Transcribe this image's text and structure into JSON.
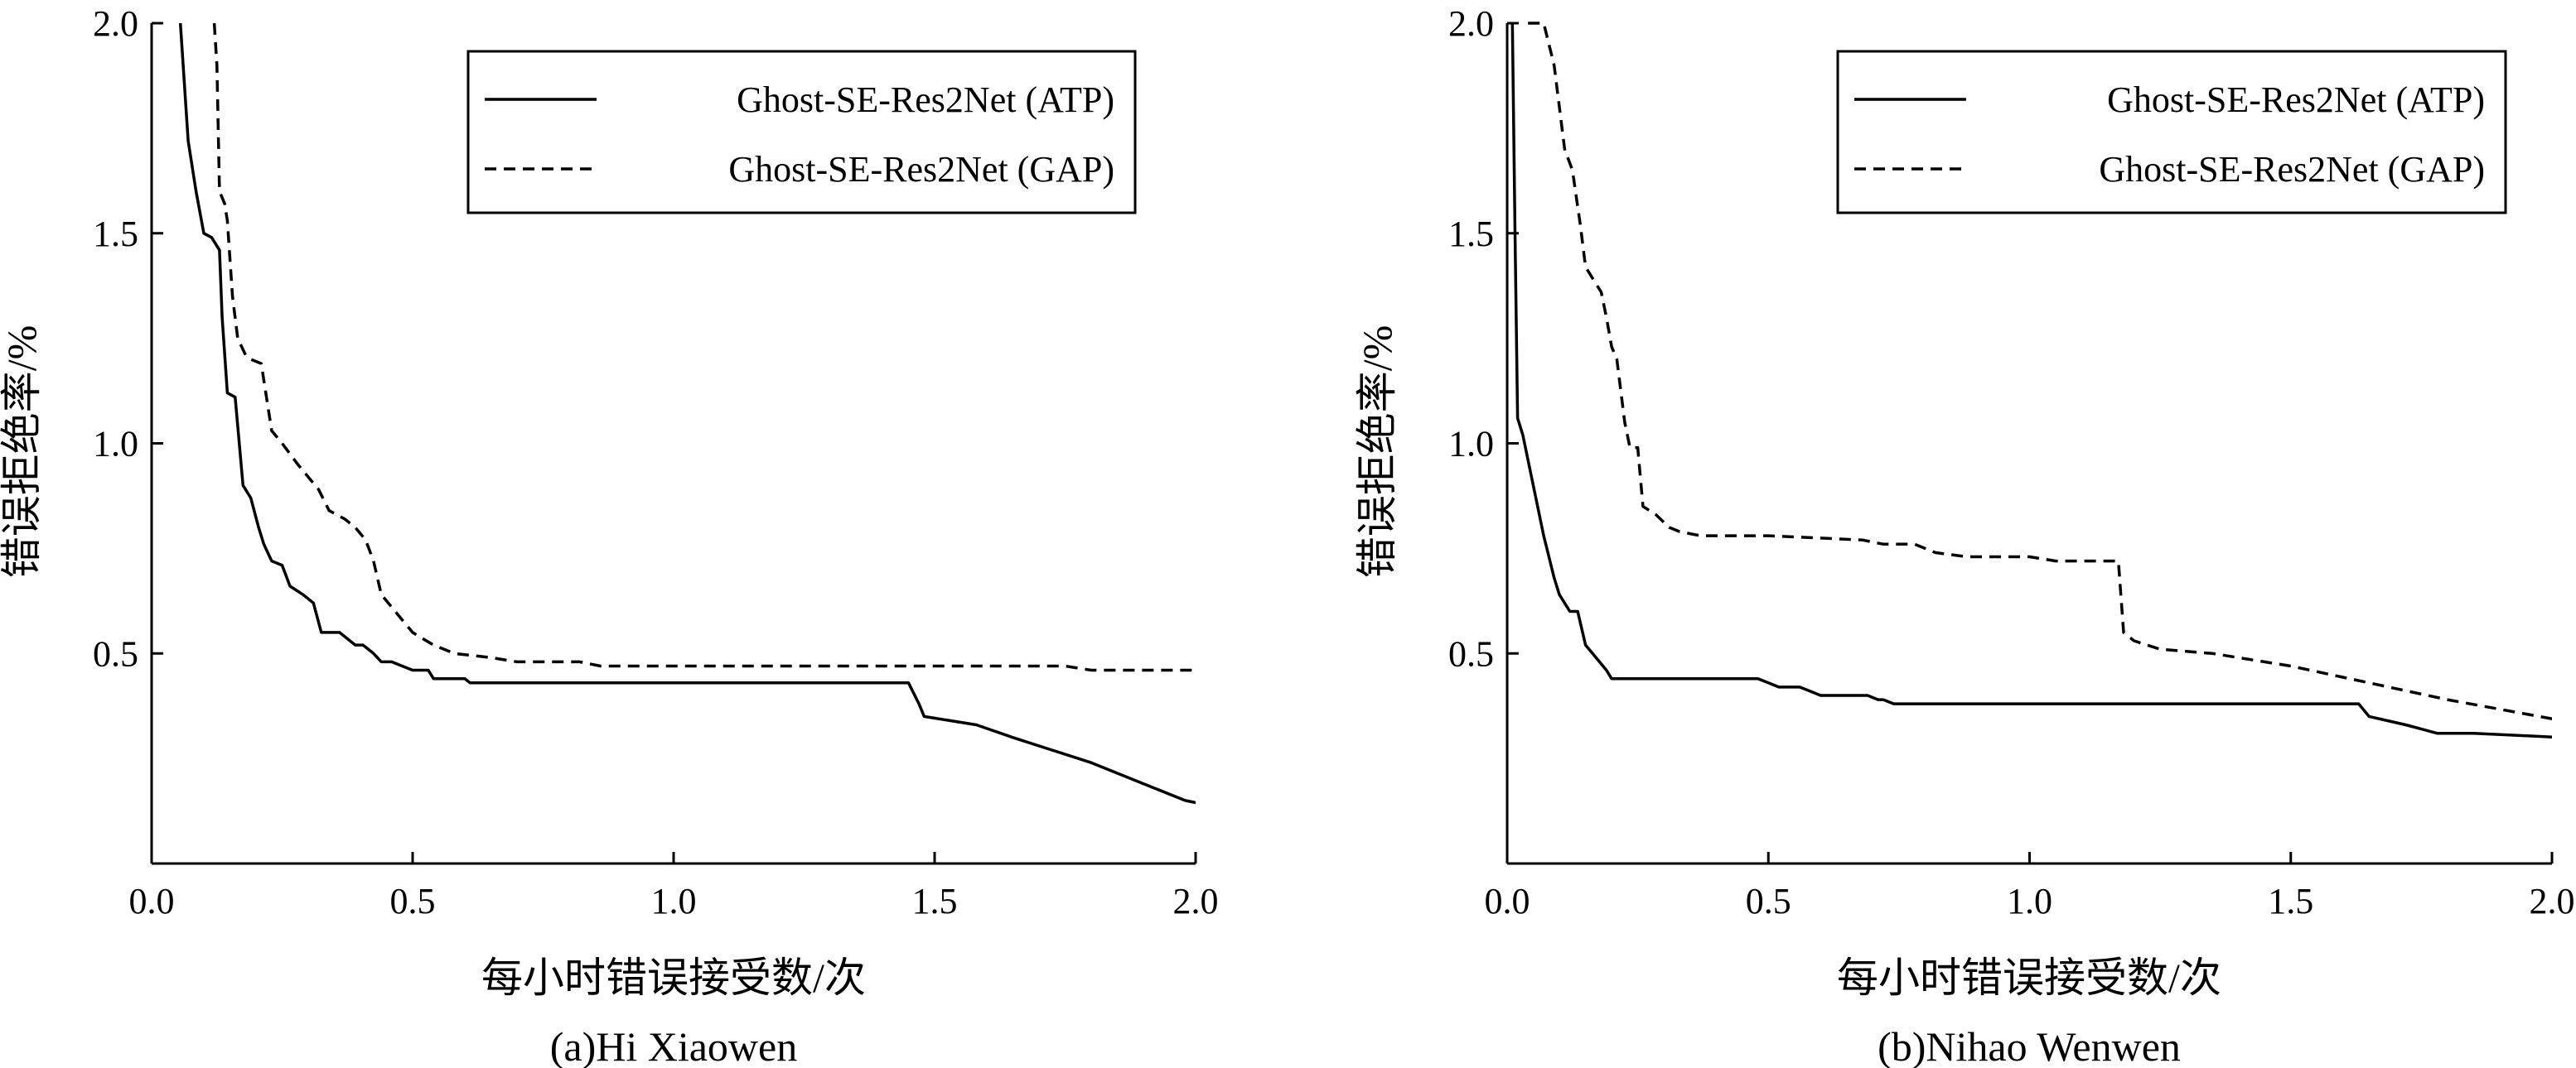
{
  "chart_data": [
    {
      "type": "line",
      "caption": "(a)Hi Xiaowen",
      "xlabel": "每小时错误接受数/次",
      "ylabel": "错误拒绝率/%",
      "xlim": [
        0,
        2.0
      ],
      "ylim": [
        0,
        2.0
      ],
      "xticks": [
        "0.0",
        "0.5",
        "1.0",
        "1.5",
        "2.0"
      ],
      "yticks": [
        "0.5",
        "1.0",
        "1.5",
        "2.0"
      ],
      "legend": "top-right",
      "grid": false,
      "series": [
        {
          "name": "Ghost-SE-Res2Net (ATP)",
          "style": "solid",
          "points": [
            [
              0.055,
              2.0
            ],
            [
              0.07,
              1.72
            ],
            [
              0.085,
              1.6
            ],
            [
              0.1,
              1.5
            ],
            [
              0.115,
              1.49
            ],
            [
              0.13,
              1.46
            ],
            [
              0.135,
              1.3
            ],
            [
              0.145,
              1.12
            ],
            [
              0.16,
              1.11
            ],
            [
              0.175,
              0.9
            ],
            [
              0.19,
              0.87
            ],
            [
              0.205,
              0.8
            ],
            [
              0.215,
              0.76
            ],
            [
              0.23,
              0.72
            ],
            [
              0.25,
              0.71
            ],
            [
              0.265,
              0.66
            ],
            [
              0.29,
              0.64
            ],
            [
              0.31,
              0.62
            ],
            [
              0.325,
              0.55
            ],
            [
              0.36,
              0.55
            ],
            [
              0.38,
              0.53
            ],
            [
              0.39,
              0.52
            ],
            [
              0.405,
              0.52
            ],
            [
              0.425,
              0.5
            ],
            [
              0.44,
              0.48
            ],
            [
              0.46,
              0.48
            ],
            [
              0.48,
              0.47
            ],
            [
              0.5,
              0.46
            ],
            [
              0.53,
              0.46
            ],
            [
              0.54,
              0.44
            ],
            [
              0.6,
              0.44
            ],
            [
              0.61,
              0.43
            ],
            [
              1.45,
              0.43
            ],
            [
              1.47,
              0.38
            ],
            [
              1.48,
              0.35
            ],
            [
              1.58,
              0.33
            ],
            [
              1.65,
              0.3
            ],
            [
              1.8,
              0.24
            ],
            [
              1.98,
              0.15
            ],
            [
              2.02,
              0.14
            ]
          ]
        },
        {
          "name": "Ghost-SE-Res2Net (GAP)",
          "style": "dashed",
          "points": [
            [
              0.12,
              2.0
            ],
            [
              0.125,
              1.9
            ],
            [
              0.13,
              1.6
            ],
            [
              0.14,
              1.57
            ],
            [
              0.145,
              1.53
            ],
            [
              0.155,
              1.35
            ],
            [
              0.165,
              1.25
            ],
            [
              0.18,
              1.21
            ],
            [
              0.19,
              1.2
            ],
            [
              0.21,
              1.19
            ],
            [
              0.23,
              1.03
            ],
            [
              0.25,
              1.0
            ],
            [
              0.28,
              0.95
            ],
            [
              0.3,
              0.92
            ],
            [
              0.32,
              0.89
            ],
            [
              0.34,
              0.84
            ],
            [
              0.37,
              0.82
            ],
            [
              0.39,
              0.8
            ],
            [
              0.41,
              0.77
            ],
            [
              0.425,
              0.72
            ],
            [
              0.44,
              0.64
            ],
            [
              0.46,
              0.61
            ],
            [
              0.48,
              0.58
            ],
            [
              0.5,
              0.55
            ],
            [
              0.54,
              0.52
            ],
            [
              0.58,
              0.5
            ],
            [
              0.65,
              0.49
            ],
            [
              0.7,
              0.48
            ],
            [
              0.82,
              0.48
            ],
            [
              0.86,
              0.47
            ],
            [
              1.75,
              0.47
            ],
            [
              1.8,
              0.46
            ],
            [
              2.02,
              0.46
            ]
          ]
        }
      ]
    },
    {
      "type": "line",
      "caption": "(b)Nihao Wenwen",
      "xlabel": "每小时错误接受数/次",
      "ylabel": "错误拒绝率/%",
      "xlim": [
        0,
        2.0
      ],
      "ylim": [
        0,
        2.0
      ],
      "xticks": [
        "0.0",
        "0.5",
        "1.0",
        "1.5",
        "2.0"
      ],
      "yticks": [
        "0.5",
        "1.0",
        "1.5",
        "2.0"
      ],
      "legend": "top-right",
      "grid": false,
      "series": [
        {
          "name": "Ghost-SE-Res2Net (ATP)",
          "style": "solid",
          "points": [
            [
              0.01,
              2.0
            ],
            [
              0.015,
              1.5
            ],
            [
              0.02,
              1.06
            ],
            [
              0.03,
              1.02
            ],
            [
              0.04,
              0.96
            ],
            [
              0.06,
              0.84
            ],
            [
              0.07,
              0.78
            ],
            [
              0.08,
              0.73
            ],
            [
              0.09,
              0.68
            ],
            [
              0.1,
              0.64
            ],
            [
              0.11,
              0.62
            ],
            [
              0.12,
              0.6
            ],
            [
              0.135,
              0.6
            ],
            [
              0.15,
              0.52
            ],
            [
              0.17,
              0.49
            ],
            [
              0.19,
              0.46
            ],
            [
              0.2,
              0.44
            ],
            [
              0.48,
              0.44
            ],
            [
              0.5,
              0.43
            ],
            [
              0.52,
              0.42
            ],
            [
              0.56,
              0.42
            ],
            [
              0.58,
              0.41
            ],
            [
              0.6,
              0.4
            ],
            [
              0.69,
              0.4
            ],
            [
              0.71,
              0.39
            ],
            [
              0.72,
              0.39
            ],
            [
              0.74,
              0.38
            ],
            [
              1.63,
              0.38
            ],
            [
              1.65,
              0.35
            ],
            [
              1.72,
              0.33
            ],
            [
              1.78,
              0.31
            ],
            [
              1.85,
              0.31
            ],
            [
              2.02,
              0.3
            ]
          ]
        },
        {
          "name": "Ghost-SE-Res2Net (GAP)",
          "style": "dashed",
          "points": [
            [
              0.04,
              2.0
            ],
            [
              0.07,
              2.0
            ],
            [
              0.09,
              1.9
            ],
            [
              0.11,
              1.7
            ],
            [
              0.125,
              1.65
            ],
            [
              0.14,
              1.52
            ],
            [
              0.15,
              1.42
            ],
            [
              0.165,
              1.39
            ],
            [
              0.18,
              1.36
            ],
            [
              0.19,
              1.3
            ],
            [
              0.2,
              1.23
            ],
            [
              0.21,
              1.2
            ],
            [
              0.225,
              1.05
            ],
            [
              0.235,
              0.99
            ],
            [
              0.25,
              0.99
            ],
            [
              0.26,
              0.85
            ],
            [
              0.285,
              0.83
            ],
            [
              0.31,
              0.8
            ],
            [
              0.33,
              0.79
            ],
            [
              0.37,
              0.78
            ],
            [
              0.5,
              0.78
            ],
            [
              0.68,
              0.77
            ],
            [
              0.72,
              0.76
            ],
            [
              0.78,
              0.76
            ],
            [
              0.82,
              0.74
            ],
            [
              0.88,
              0.73
            ],
            [
              1.0,
              0.73
            ],
            [
              1.05,
              0.72
            ],
            [
              1.17,
              0.72
            ],
            [
              1.18,
              0.55
            ],
            [
              1.2,
              0.53
            ],
            [
              1.25,
              0.51
            ],
            [
              1.35,
              0.5
            ],
            [
              1.5,
              0.47
            ],
            [
              1.65,
              0.43
            ],
            [
              1.8,
              0.39
            ],
            [
              2.02,
              0.34
            ]
          ]
        }
      ]
    }
  ]
}
